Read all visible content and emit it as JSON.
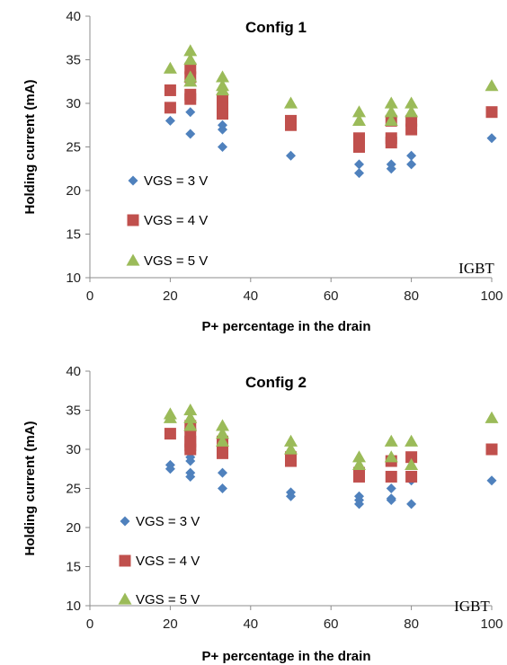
{
  "chart_data": [
    {
      "type": "scatter",
      "title": "Config 1",
      "xlabel": "P+ percentage in the drain",
      "ylabel": "Holding current (mA)",
      "xlim": [
        0,
        100
      ],
      "ylim": [
        10,
        40
      ],
      "xticks": [
        0,
        20,
        40,
        60,
        80,
        100
      ],
      "yticks": [
        10,
        15,
        20,
        25,
        30,
        35,
        40
      ],
      "grid": false,
      "legend_position": "left",
      "annotation": "IGBT",
      "series": [
        {
          "name": "VGS = 3 V",
          "marker": "diamond",
          "color": "#4f81bd",
          "points": [
            [
              20,
              28
            ],
            [
              25,
              29
            ],
            [
              25,
              26.5
            ],
            [
              33,
              27.5
            ],
            [
              33,
              27
            ],
            [
              33,
              25
            ],
            [
              50,
              24
            ],
            [
              67,
              23
            ],
            [
              67,
              22
            ],
            [
              75,
              25.5
            ],
            [
              75,
              23
            ],
            [
              75,
              22.5
            ],
            [
              80,
              24
            ],
            [
              80,
              23
            ],
            [
              100,
              26
            ]
          ]
        },
        {
          "name": "VGS = 4 V",
          "marker": "square",
          "color": "#c0504d",
          "points": [
            [
              20,
              31.5
            ],
            [
              20,
              29.5
            ],
            [
              25,
              34
            ],
            [
              25,
              33
            ],
            [
              25,
              31
            ],
            [
              25,
              30.5
            ],
            [
              33,
              30.5
            ],
            [
              33,
              29.5
            ],
            [
              33,
              28.8
            ],
            [
              50,
              28
            ],
            [
              50,
              27.5
            ],
            [
              67,
              26
            ],
            [
              67,
              25
            ],
            [
              75,
              28
            ],
            [
              75,
              26
            ],
            [
              75,
              25.5
            ],
            [
              80,
              28
            ],
            [
              80,
              27
            ],
            [
              100,
              29
            ]
          ]
        },
        {
          "name": "VGS = 5 V",
          "marker": "triangle",
          "color": "#9bbb59",
          "points": [
            [
              20,
              34
            ],
            [
              25,
              36
            ],
            [
              25,
              35
            ],
            [
              25,
              33
            ],
            [
              25,
              32.5
            ],
            [
              33,
              33
            ],
            [
              33,
              32
            ],
            [
              33,
              31.5
            ],
            [
              50,
              30
            ],
            [
              67,
              29
            ],
            [
              67,
              28
            ],
            [
              75,
              30
            ],
            [
              75,
              29
            ],
            [
              75,
              28
            ],
            [
              80,
              30
            ],
            [
              80,
              29
            ],
            [
              100,
              32
            ]
          ]
        }
      ]
    },
    {
      "type": "scatter",
      "title": "Config 2",
      "xlabel": "P+ percentage in the drain",
      "ylabel": "Holding current (mA)",
      "xlim": [
        0,
        100
      ],
      "ylim": [
        10,
        40
      ],
      "xticks": [
        0,
        20,
        40,
        60,
        80,
        100
      ],
      "yticks": [
        10,
        15,
        20,
        25,
        30,
        35,
        40
      ],
      "grid": false,
      "legend_position": "left",
      "annotation": "IGBT",
      "series": [
        {
          "name": "VGS = 3 V",
          "marker": "diamond",
          "color": "#4f81bd",
          "points": [
            [
              20,
              28
            ],
            [
              20,
              27.5
            ],
            [
              25,
              29
            ],
            [
              25,
              28.5
            ],
            [
              25,
              27
            ],
            [
              25,
              26.5
            ],
            [
              33,
              27
            ],
            [
              33,
              25
            ],
            [
              50,
              24.5
            ],
            [
              50,
              24
            ],
            [
              67,
              24
            ],
            [
              67,
              23.5
            ],
            [
              67,
              23
            ],
            [
              75,
              25
            ],
            [
              75,
              23.7
            ],
            [
              75,
              23.5
            ],
            [
              80,
              26
            ],
            [
              80,
              23
            ],
            [
              100,
              26
            ]
          ]
        },
        {
          "name": "VGS = 4 V",
          "marker": "square",
          "color": "#c0504d",
          "points": [
            [
              20,
              32
            ],
            [
              25,
              33
            ],
            [
              25,
              32
            ],
            [
              25,
              31
            ],
            [
              25,
              30.5
            ],
            [
              25,
              30
            ],
            [
              33,
              31
            ],
            [
              33,
              30
            ],
            [
              33,
              29.5
            ],
            [
              50,
              29
            ],
            [
              50,
              28.5
            ],
            [
              67,
              27
            ],
            [
              67,
              26.5
            ],
            [
              75,
              28.5
            ],
            [
              75,
              26.5
            ],
            [
              80,
              29
            ],
            [
              80,
              26.5
            ],
            [
              100,
              30
            ]
          ]
        },
        {
          "name": "VGS = 5 V",
          "marker": "triangle",
          "color": "#9bbb59",
          "points": [
            [
              20,
              34.5
            ],
            [
              20,
              34
            ],
            [
              25,
              35
            ],
            [
              25,
              34
            ],
            [
              25,
              33
            ],
            [
              33,
              33
            ],
            [
              33,
              32
            ],
            [
              33,
              31
            ],
            [
              50,
              31
            ],
            [
              50,
              30
            ],
            [
              67,
              29
            ],
            [
              67,
              28
            ],
            [
              75,
              31
            ],
            [
              75,
              29
            ],
            [
              80,
              31
            ],
            [
              80,
              28
            ],
            [
              100,
              34
            ]
          ]
        }
      ]
    }
  ]
}
